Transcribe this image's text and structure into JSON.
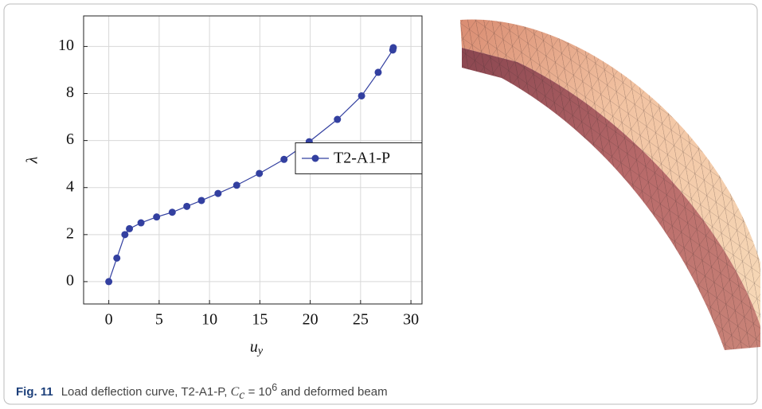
{
  "chart_data": {
    "type": "line",
    "x_label": "u",
    "x_label_sub": "y",
    "y_label": "λ",
    "x": [
      0,
      0.8,
      1.6,
      2.05,
      3.2,
      4.75,
      6.3,
      7.75,
      9.2,
      10.85,
      12.7,
      14.95,
      17.4,
      19.9,
      22.7,
      25.1,
      26.75,
      28.2,
      28.25
    ],
    "series": [
      {
        "name": "T2-A1-P",
        "color": "#3340a0",
        "values": [
          0,
          1,
          2,
          2.25,
          2.5,
          2.75,
          2.95,
          3.2,
          3.45,
          3.75,
          4.1,
          4.6,
          5.2,
          5.95,
          6.9,
          7.9,
          8.9,
          9.85,
          9.95
        ]
      }
    ],
    "xlim": [
      -2.5,
      31.1
    ],
    "ylim": [
      -0.95,
      11.3
    ],
    "xticks": [
      0,
      5,
      10,
      15,
      20,
      25,
      30
    ],
    "yticks": [
      0,
      2,
      4,
      6,
      8,
      10
    ],
    "grid": true,
    "legend": "right"
  },
  "caption": {
    "label": "Fig. 11",
    "text": "Load deflection curve, T2-A1-P,",
    "math_base": "C",
    "math_sub": "c",
    "math_eq": "= 10",
    "math_sup": "6",
    "suffix": "and deformed beam"
  }
}
